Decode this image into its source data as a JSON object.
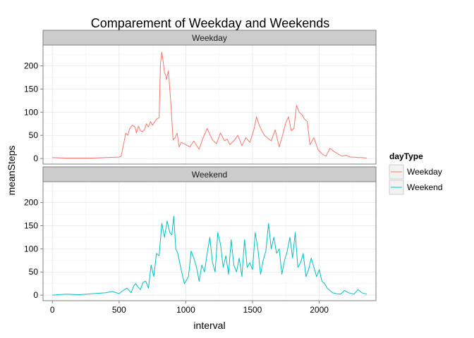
{
  "chart_data": {
    "type": "line",
    "title": "Comparement of Weekday and Weekends",
    "xlabel": "interval",
    "ylabel": "meanSteps",
    "xlim": [
      -70,
      2425
    ],
    "ylim": [
      -12,
      245
    ],
    "x_ticks": [
      0,
      500,
      1000,
      1500,
      2000
    ],
    "y_ticks": [
      0,
      50,
      100,
      150,
      200
    ],
    "grid": true,
    "legend": {
      "title": "dayType",
      "position": "right"
    },
    "panels": [
      {
        "label": "Weekday",
        "color": "#F8766D",
        "x": [
          0,
          100,
          200,
          300,
          400,
          500,
          515,
          530,
          550,
          565,
          580,
          600,
          620,
          630,
          645,
          660,
          675,
          690,
          705,
          720,
          735,
          750,
          765,
          780,
          800,
          810,
          820,
          830,
          840,
          850,
          855,
          870,
          890,
          905,
          920,
          935,
          950,
          965,
          1000,
          1030,
          1060,
          1100,
          1130,
          1160,
          1200,
          1230,
          1260,
          1290,
          1310,
          1330,
          1360,
          1390,
          1420,
          1450,
          1480,
          1510,
          1530,
          1550,
          1570,
          1590,
          1610,
          1640,
          1670,
          1700,
          1730,
          1750,
          1770,
          1790,
          1810,
          1830,
          1850,
          1870,
          1890,
          1910,
          1930,
          1960,
          1990,
          2020,
          2050,
          2080,
          2110,
          2140,
          2170,
          2200,
          2230,
          2260,
          2290,
          2320,
          2355
        ],
        "values": [
          2,
          1,
          1,
          1,
          2,
          3,
          5,
          25,
          55,
          50,
          65,
          72,
          68,
          55,
          70,
          60,
          58,
          62,
          75,
          68,
          80,
          72,
          78,
          85,
          88,
          205,
          230,
          210,
          185,
          180,
          170,
          190,
          110,
          40,
          45,
          55,
          25,
          35,
          30,
          25,
          38,
          20,
          45,
          65,
          40,
          32,
          55,
          38,
          42,
          30,
          38,
          50,
          28,
          45,
          35,
          62,
          90,
          72,
          60,
          50,
          45,
          38,
          62,
          25,
          55,
          78,
          90,
          60,
          65,
          115,
          100,
          95,
          85,
          80,
          30,
          45,
          20,
          10,
          5,
          22,
          15,
          10,
          5,
          7,
          3,
          3,
          2,
          2,
          1
        ]
      },
      {
        "label": "Weekend",
        "color": "#00BFC4",
        "x": [
          0,
          100,
          200,
          300,
          400,
          450,
          500,
          530,
          560,
          590,
          610,
          625,
          640,
          660,
          680,
          700,
          720,
          740,
          760,
          780,
          800,
          820,
          840,
          860,
          880,
          895,
          910,
          925,
          940,
          965,
          990,
          1020,
          1040,
          1060,
          1080,
          1100,
          1120,
          1140,
          1160,
          1180,
          1200,
          1220,
          1240,
          1260,
          1280,
          1300,
          1320,
          1340,
          1360,
          1380,
          1400,
          1420,
          1440,
          1460,
          1480,
          1500,
          1520,
          1540,
          1560,
          1580,
          1600,
          1620,
          1640,
          1660,
          1680,
          1700,
          1720,
          1740,
          1760,
          1780,
          1800,
          1820,
          1840,
          1860,
          1880,
          1900,
          1920,
          1940,
          1960,
          1980,
          2000,
          2020,
          2040,
          2060,
          2080,
          2100,
          2130,
          2160,
          2190,
          2220,
          2260,
          2290,
          2320,
          2355
        ],
        "values": [
          0,
          2,
          1,
          3,
          5,
          8,
          3,
          10,
          15,
          5,
          20,
          25,
          18,
          12,
          28,
          30,
          15,
          65,
          40,
          90,
          85,
          155,
          125,
          160,
          135,
          130,
          170,
          100,
          90,
          55,
          25,
          40,
          95,
          80,
          60,
          30,
          65,
          50,
          90,
          125,
          70,
          50,
          135,
          110,
          60,
          85,
          45,
          120,
          65,
          50,
          80,
          40,
          120,
          60,
          70,
          55,
          135,
          100,
          45,
          75,
          95,
          155,
          100,
          125,
          90,
          100,
          45,
          75,
          95,
          125,
          80,
          135,
          60,
          70,
          90,
          40,
          55,
          80,
          60,
          40,
          55,
          30,
          25,
          15,
          10,
          5,
          3,
          2,
          10,
          5,
          2,
          12,
          5,
          2
        ]
      }
    ]
  }
}
